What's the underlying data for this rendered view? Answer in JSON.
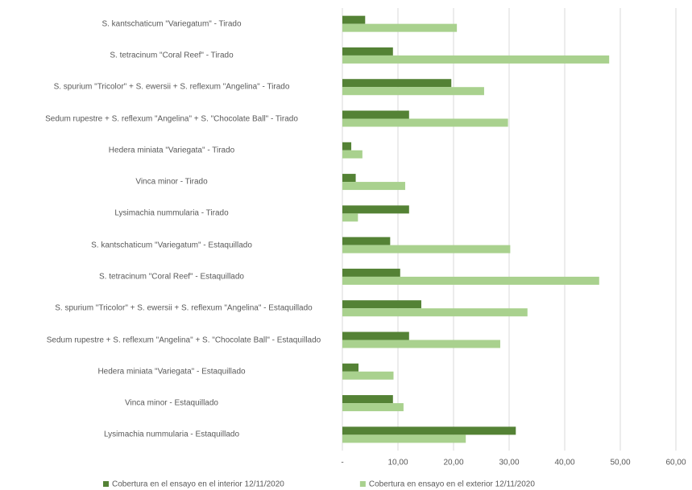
{
  "chart_data": {
    "type": "hbar",
    "categories": [
      "S. kantschaticum \"Variegatum\" - Tirado",
      "S. tetracinum \"Coral Reef\" - Tirado",
      "S. spurium \"Tricolor\" + S. ewersii + S. reflexum \"Angelina\" - Tirado",
      "Sedum rupestre + S. reflexum \"Angelina\" + S. \"Chocolate Ball\" - Tirado",
      "Hedera miniata \"Variegata\" - Tirado",
      "Vinca minor - Tirado",
      "Lysimachia nummularia - Tirado",
      "S. kantschaticum \"Variegatum\" - Estaquillado",
      "S. tetracinum \"Coral Reef\" - Estaquillado",
      "S. spurium \"Tricolor\" + S. ewersii + S. reflexum \"Angelina\" - Estaquillado",
      "Sedum rupestre + S. reflexum \"Angelina\" + S. \"Chocolate Ball\" - Estaquillado",
      "Hedera miniata \"Variegata\" - Estaquillado",
      "Vinca minor - Estaquillado",
      "Lysimachia nummularia - Estaquillado"
    ],
    "series": [
      {
        "name": "Cobertura en el ensayo en el interior 12/11/2020",
        "color": "#548235",
        "values": [
          4.1,
          9.1,
          19.6,
          12,
          1.6,
          2.4,
          12,
          8.6,
          10.4,
          14.2,
          12,
          2.9,
          9.1,
          31.2
        ]
      },
      {
        "name": "Cobertura en ensayo en el exterior 12/11/2020",
        "color": "#a9d18e",
        "values": [
          20.6,
          48,
          25.5,
          29.8,
          3.6,
          11.3,
          2.8,
          30.2,
          46.2,
          33.3,
          28.4,
          9.2,
          11,
          22.2
        ]
      }
    ],
    "xlim": [
      0,
      60
    ],
    "xticks": [
      {
        "value": 0,
        "label": "-"
      },
      {
        "value": 10,
        "label": "10,00"
      },
      {
        "value": 20,
        "label": "20,00"
      },
      {
        "value": 30,
        "label": "30,00"
      },
      {
        "value": 40,
        "label": "40,00"
      },
      {
        "value": 50,
        "label": "50,00"
      },
      {
        "value": 60,
        "label": "60,00"
      }
    ],
    "grid": true
  }
}
